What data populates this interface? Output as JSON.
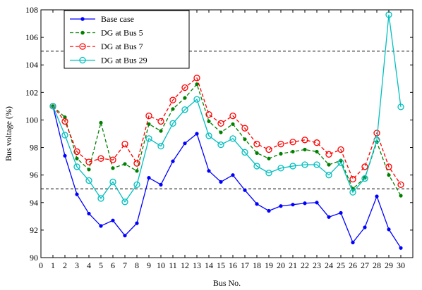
{
  "chart_data": {
    "type": "line",
    "title": "",
    "xlabel": "Bus No.",
    "ylabel": "Bus voltage (%)",
    "x": [
      1,
      2,
      3,
      4,
      5,
      6,
      7,
      8,
      9,
      10,
      11,
      12,
      13,
      14,
      15,
      16,
      17,
      18,
      19,
      20,
      21,
      22,
      23,
      24,
      25,
      26,
      27,
      28,
      29,
      30
    ],
    "xlim": [
      0,
      31
    ],
    "ylim": [
      90,
      108
    ],
    "xticks": [
      0,
      1,
      2,
      3,
      4,
      5,
      6,
      7,
      8,
      9,
      10,
      11,
      12,
      13,
      14,
      15,
      16,
      17,
      18,
      19,
      20,
      21,
      22,
      23,
      24,
      25,
      26,
      27,
      28,
      29,
      30
    ],
    "yticks": [
      90,
      92,
      94,
      96,
      98,
      100,
      102,
      104,
      106,
      108
    ],
    "reference_lines": [
      95,
      105
    ],
    "grid": false,
    "legend_position": "top-left",
    "series": [
      {
        "name": "Base case",
        "color": "#0000ff",
        "line_style": "solid",
        "marker": "dot",
        "values": [
          101.0,
          97.4,
          94.6,
          93.2,
          92.3,
          92.7,
          91.6,
          92.5,
          95.8,
          95.3,
          97.0,
          98.3,
          99.0,
          96.3,
          95.5,
          96.0,
          94.9,
          93.9,
          93.4,
          93.75,
          93.85,
          93.95,
          94.0,
          92.95,
          93.25,
          91.1,
          92.2,
          94.45,
          92.05,
          90.7
        ]
      },
      {
        "name": "DG at Bus 5",
        "color": "#008000",
        "line_style": "dashed",
        "marker": "dot",
        "values": [
          101.0,
          100.2,
          97.2,
          96.4,
          99.8,
          96.5,
          96.8,
          96.3,
          99.7,
          99.2,
          100.8,
          101.6,
          102.6,
          99.9,
          99.1,
          99.7,
          98.6,
          97.6,
          97.2,
          97.55,
          97.7,
          97.85,
          97.7,
          96.75,
          97.05,
          95.0,
          95.8,
          98.4,
          96.0,
          94.5
        ]
      },
      {
        "name": "DG at Bus 7",
        "color": "#ff0000",
        "line_style": "dashed",
        "marker": "circle",
        "values": [
          101.0,
          99.9,
          97.7,
          96.95,
          97.2,
          97.1,
          98.25,
          96.85,
          100.3,
          99.9,
          101.45,
          102.35,
          103.05,
          100.4,
          99.75,
          100.3,
          99.4,
          98.25,
          97.85,
          98.25,
          98.4,
          98.55,
          98.35,
          97.5,
          97.85,
          95.7,
          96.6,
          99.05,
          96.6,
          95.3
        ]
      },
      {
        "name": "DG at Bus 29",
        "color": "#00bfbf",
        "line_style": "solid",
        "marker": "circle",
        "values": [
          101.0,
          98.9,
          96.6,
          95.6,
          94.3,
          95.5,
          94.05,
          95.3,
          98.65,
          98.1,
          99.75,
          100.75,
          101.5,
          98.85,
          98.2,
          98.65,
          97.65,
          96.65,
          96.15,
          96.5,
          96.65,
          96.75,
          96.75,
          96.0,
          96.9,
          94.75,
          95.75,
          98.55,
          107.65,
          100.95
        ]
      }
    ]
  }
}
